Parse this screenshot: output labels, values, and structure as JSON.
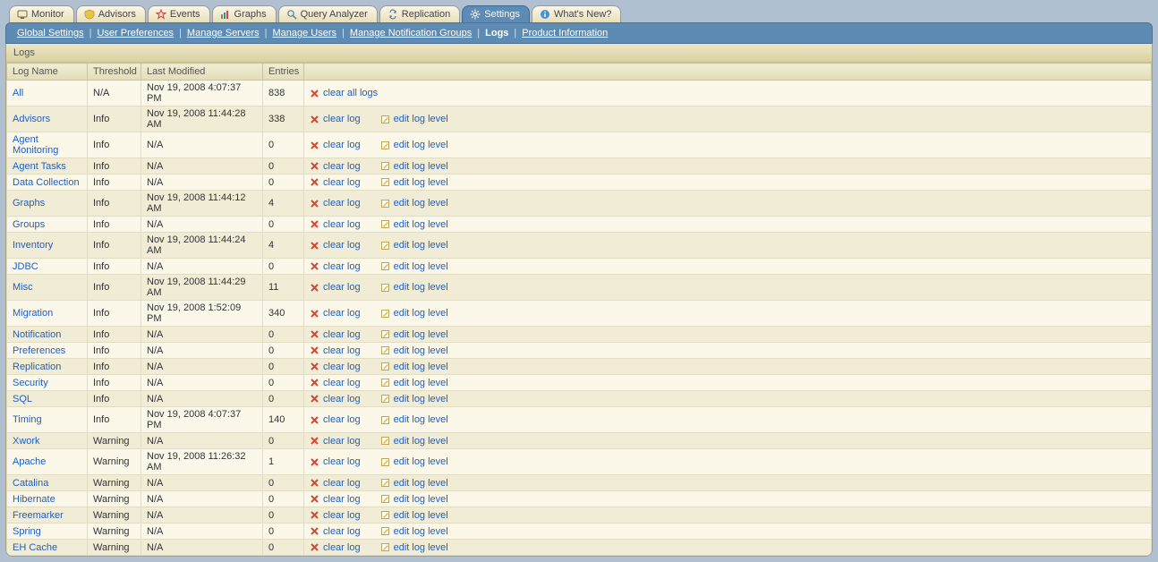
{
  "tabs": [
    {
      "id": "monitor",
      "label": "Monitor",
      "icon": "monitor-icon",
      "active": false
    },
    {
      "id": "advisors",
      "label": "Advisors",
      "icon": "shield-icon",
      "active": false
    },
    {
      "id": "events",
      "label": "Events",
      "icon": "star-icon",
      "active": false
    },
    {
      "id": "graphs",
      "label": "Graphs",
      "icon": "chart-icon",
      "active": false
    },
    {
      "id": "qa",
      "label": "Query Analyzer",
      "icon": "query-icon",
      "active": false
    },
    {
      "id": "replication",
      "label": "Replication",
      "icon": "repl-icon",
      "active": false
    },
    {
      "id": "settings",
      "label": "Settings",
      "icon": "gear-icon",
      "active": true
    },
    {
      "id": "whatsnew",
      "label": "What's New?",
      "icon": "info-icon",
      "active": false
    }
  ],
  "subnav": {
    "items": [
      {
        "label": "Global Settings",
        "kind": "link"
      },
      {
        "label": "User Preferences",
        "kind": "link"
      },
      {
        "label": "Manage Servers",
        "kind": "link"
      },
      {
        "label": "Manage Users",
        "kind": "link"
      },
      {
        "label": "Manage Notification Groups",
        "kind": "link"
      },
      {
        "label": "Logs",
        "kind": "current"
      },
      {
        "label": "Product Information",
        "kind": "link"
      }
    ]
  },
  "panel_title": "Logs",
  "columns": [
    "Log Name",
    "Threshold",
    "Last Modified",
    "Entries",
    ""
  ],
  "row_all": {
    "name": "All",
    "threshold": "N/A",
    "modified": "Nov 19, 2008 4:07:37 PM",
    "entries": "838",
    "action_label": "clear all logs"
  },
  "actions": {
    "clear": "clear log",
    "edit": "edit log level"
  },
  "rows": [
    {
      "name": "Advisors",
      "threshold": "Info",
      "modified": "Nov 19, 2008 11:44:28 AM",
      "entries": "338"
    },
    {
      "name": "Agent Monitoring",
      "threshold": "Info",
      "modified": "N/A",
      "entries": "0"
    },
    {
      "name": "Agent Tasks",
      "threshold": "Info",
      "modified": "N/A",
      "entries": "0"
    },
    {
      "name": "Data Collection",
      "threshold": "Info",
      "modified": "N/A",
      "entries": "0"
    },
    {
      "name": "Graphs",
      "threshold": "Info",
      "modified": "Nov 19, 2008 11:44:12 AM",
      "entries": "4"
    },
    {
      "name": "Groups",
      "threshold": "Info",
      "modified": "N/A",
      "entries": "0"
    },
    {
      "name": "Inventory",
      "threshold": "Info",
      "modified": "Nov 19, 2008 11:44:24 AM",
      "entries": "4"
    },
    {
      "name": "JDBC",
      "threshold": "Info",
      "modified": "N/A",
      "entries": "0"
    },
    {
      "name": "Misc",
      "threshold": "Info",
      "modified": "Nov 19, 2008 11:44:29 AM",
      "entries": "11"
    },
    {
      "name": "Migration",
      "threshold": "Info",
      "modified": "Nov 19, 2008 1:52:09 PM",
      "entries": "340"
    },
    {
      "name": "Notification",
      "threshold": "Info",
      "modified": "N/A",
      "entries": "0"
    },
    {
      "name": "Preferences",
      "threshold": "Info",
      "modified": "N/A",
      "entries": "0"
    },
    {
      "name": "Replication",
      "threshold": "Info",
      "modified": "N/A",
      "entries": "0"
    },
    {
      "name": "Security",
      "threshold": "Info",
      "modified": "N/A",
      "entries": "0"
    },
    {
      "name": "SQL",
      "threshold": "Info",
      "modified": "N/A",
      "entries": "0"
    },
    {
      "name": "Timing",
      "threshold": "Info",
      "modified": "Nov 19, 2008 4:07:37 PM",
      "entries": "140"
    },
    {
      "name": "Xwork",
      "threshold": "Warning",
      "modified": "N/A",
      "entries": "0"
    },
    {
      "name": "Apache",
      "threshold": "Warning",
      "modified": "Nov 19, 2008 11:26:32 AM",
      "entries": "1"
    },
    {
      "name": "Catalina",
      "threshold": "Warning",
      "modified": "N/A",
      "entries": "0"
    },
    {
      "name": "Hibernate",
      "threshold": "Warning",
      "modified": "N/A",
      "entries": "0"
    },
    {
      "name": "Freemarker",
      "threshold": "Warning",
      "modified": "N/A",
      "entries": "0"
    },
    {
      "name": "Spring",
      "threshold": "Warning",
      "modified": "N/A",
      "entries": "0"
    },
    {
      "name": "EH Cache",
      "threshold": "Warning",
      "modified": "N/A",
      "entries": "0"
    }
  ],
  "colors": {
    "link": "#1f5fbf",
    "delete": "#d04a3a",
    "edit": "#3a90d0"
  }
}
